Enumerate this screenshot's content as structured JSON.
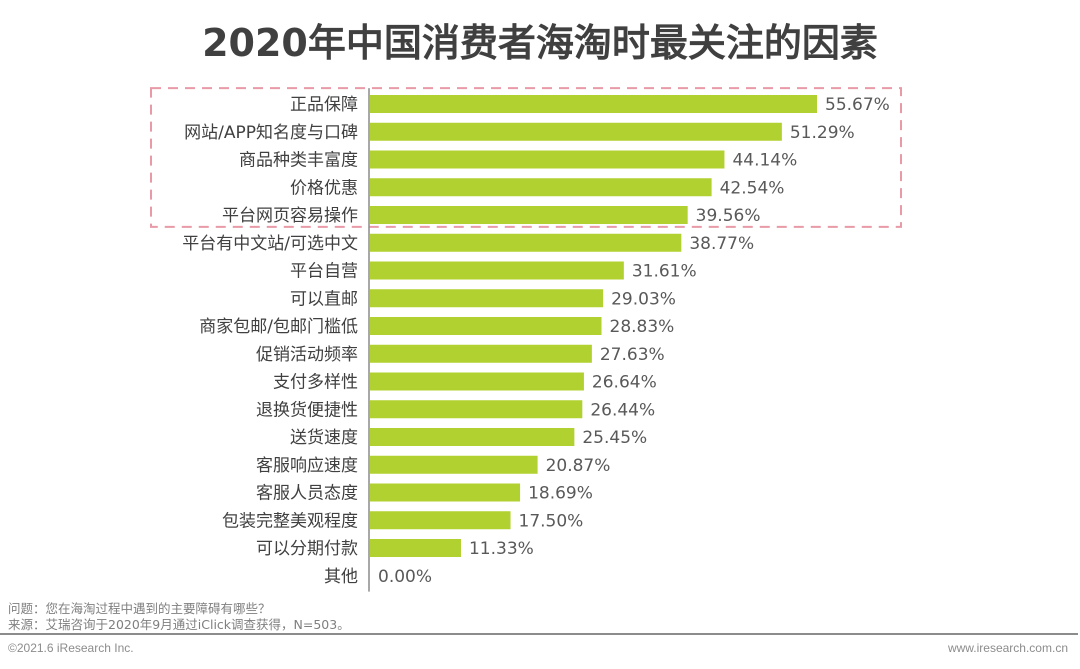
{
  "chart_data": {
    "type": "bar",
    "orientation": "horizontal",
    "title": "2020年中国消费者海淘时最关注的因素",
    "xlabel": "",
    "ylabel": "",
    "xlim": [
      0,
      60
    ],
    "grid": false,
    "unit": "%",
    "bar_color": "#b0d12f",
    "highlight_box": {
      "color": "#e89aa6",
      "style": "dashed",
      "categories_covered": 5
    },
    "categories": [
      "正品保障",
      "网站/APP知名度与口碑",
      "商品种类丰富度",
      "价格优惠",
      "平台网页容易操作",
      "平台有中文站/可选中文",
      "平台自营",
      "可以直邮",
      "商家包邮/包邮门槛低",
      "促销活动频率",
      "支付多样性",
      "退换货便捷性",
      "送货速度",
      "客服响应速度",
      "客服人员态度",
      "包装完整美观程度",
      "可以分期付款",
      "其他"
    ],
    "values": [
      55.67,
      51.29,
      44.14,
      42.54,
      39.56,
      38.77,
      31.61,
      29.03,
      28.83,
      27.63,
      26.64,
      26.44,
      25.45,
      20.87,
      18.69,
      17.5,
      11.33,
      0.0
    ],
    "value_labels": [
      "55.67%",
      "51.29%",
      "44.14%",
      "42.54%",
      "39.56%",
      "38.77%",
      "31.61%",
      "29.03%",
      "28.83%",
      "27.63%",
      "26.64%",
      "26.44%",
      "25.45%",
      "20.87%",
      "18.69%",
      "17.50%",
      "11.33%",
      "0.00%"
    ]
  },
  "notes": {
    "question": "问题：您在海淘过程中遇到的主要障碍有哪些？",
    "source": "来源：艾瑞咨询于2020年9月通过iClick调查获得，N=503。"
  },
  "footer": {
    "copyright": "©2021.6 iResearch Inc.",
    "website": "www.iresearch.com.cn"
  }
}
